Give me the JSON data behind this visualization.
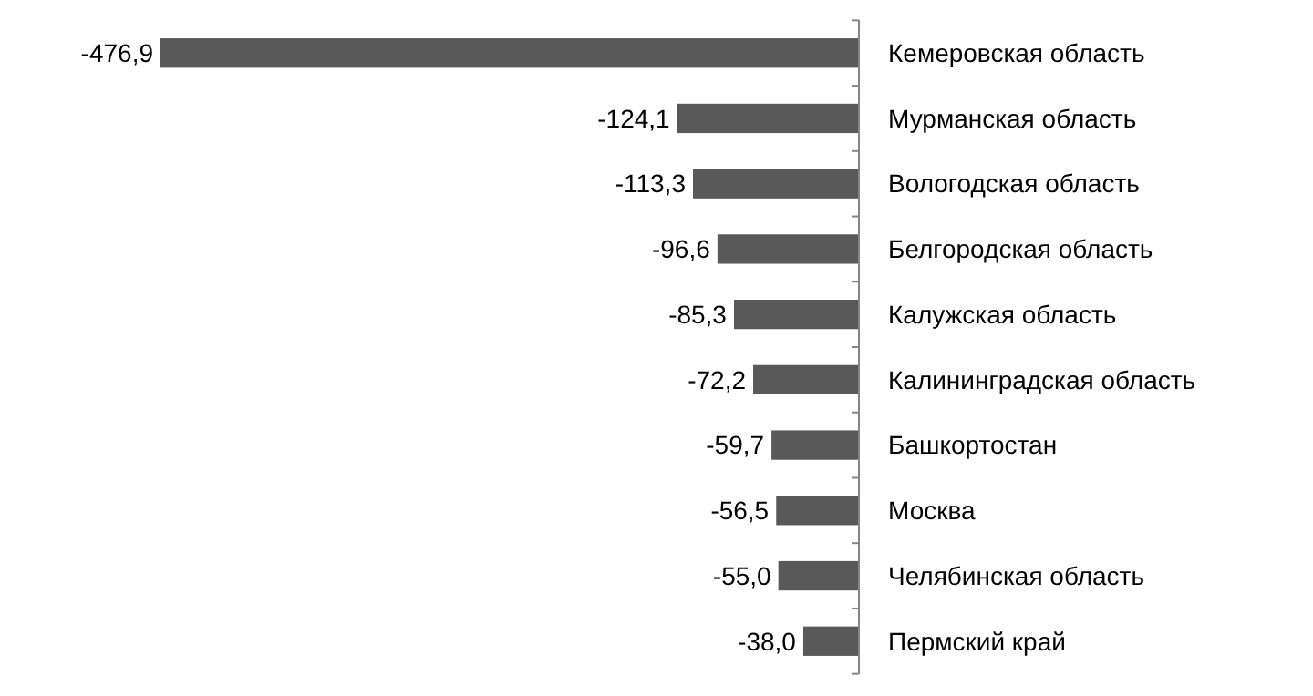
{
  "chart_data": {
    "type": "bar",
    "orientation": "horizontal",
    "categories": [
      "Кемеровская область",
      "Мурманская область",
      "Вологодская область",
      "Белгородская область",
      "Калужская область",
      "Калининградская область",
      "Башкортостан",
      "Москва",
      "Челябинская область",
      "Пермский край"
    ],
    "values": [
      -476.9,
      -124.1,
      -113.3,
      -96.6,
      -85.3,
      -72.2,
      -59.7,
      -56.5,
      -55.0,
      -38.0
    ],
    "value_labels": [
      "-476,9",
      "-124,1",
      "-113,3",
      "-96,6",
      "-85,3",
      "-72,2",
      "-59,7",
      "-56,5",
      "-55,0",
      "-38,0"
    ],
    "color": "#595959"
  }
}
